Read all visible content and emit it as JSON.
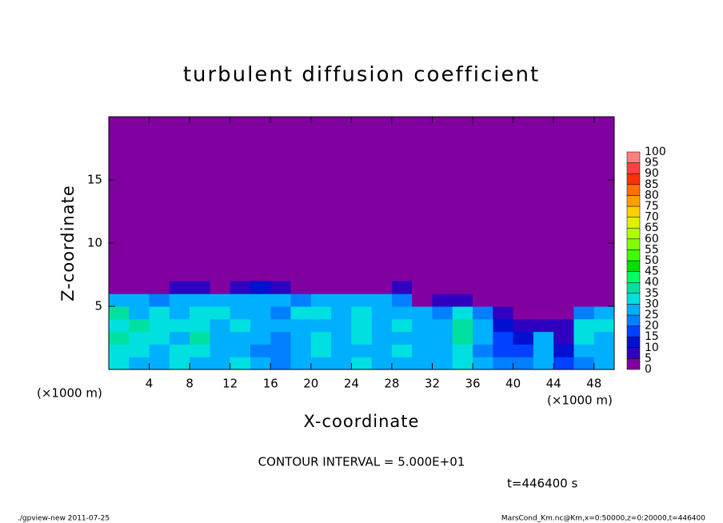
{
  "chart_data": {
    "type": "heatmap",
    "title": "turbulent diffusion coefficient",
    "xlabel": "X-coordinate",
    "ylabel": "Z-coordinate",
    "x_unit": "(×1000 m)",
    "xlim": [
      0,
      50
    ],
    "ylim": [
      0,
      20
    ],
    "xticks": [
      4,
      8,
      12,
      16,
      20,
      24,
      28,
      32,
      36,
      40,
      44,
      48
    ],
    "yticks": [
      5,
      10,
      15
    ],
    "x": [
      1,
      3,
      5,
      7,
      9,
      11,
      13,
      15,
      17,
      19,
      21,
      23,
      25,
      27,
      29,
      31,
      33,
      35,
      37,
      39,
      41,
      43,
      45,
      47,
      49
    ],
    "y": [
      0.5,
      1.5,
      2.5,
      3.5,
      4.5,
      5.5,
      6.5
    ],
    "z": [
      [
        30,
        28,
        25,
        30,
        28,
        25,
        30,
        25,
        22,
        25,
        28,
        25,
        30,
        25,
        28,
        25,
        25,
        30,
        25,
        20,
        22,
        28,
        15,
        22,
        25
      ],
      [
        30,
        32,
        28,
        30,
        30,
        25,
        25,
        22,
        20,
        25,
        30,
        25,
        28,
        25,
        30,
        25,
        25,
        30,
        20,
        18,
        15,
        25,
        12,
        25,
        28
      ],
      [
        35,
        30,
        30,
        28,
        35,
        28,
        25,
        25,
        22,
        28,
        30,
        25,
        30,
        28,
        25,
        28,
        25,
        35,
        25,
        15,
        10,
        28,
        8,
        30,
        25
      ],
      [
        30,
        35,
        30,
        30,
        30,
        28,
        30,
        25,
        25,
        25,
        28,
        28,
        30,
        25,
        30,
        25,
        28,
        35,
        28,
        10,
        5,
        5,
        5,
        30,
        30
      ],
      [
        35,
        25,
        30,
        28,
        30,
        30,
        25,
        28,
        22,
        30,
        30,
        28,
        30,
        28,
        28,
        28,
        20,
        30,
        20,
        5,
        0,
        0,
        0,
        20,
        25
      ],
      [
        25,
        28,
        22,
        25,
        25,
        28,
        25,
        25,
        25,
        22,
        28,
        25,
        25,
        28,
        22,
        0,
        5,
        5,
        0,
        0,
        0,
        0,
        0,
        0,
        0
      ],
      [
        0,
        0,
        0,
        5,
        5,
        0,
        5,
        10,
        5,
        0,
        0,
        0,
        0,
        0,
        5,
        0,
        0,
        0,
        0,
        0,
        0,
        0,
        0,
        0,
        0
      ]
    ],
    "levels": [
      0,
      5,
      10,
      15,
      20,
      25,
      30,
      35,
      40,
      45,
      50,
      55,
      60,
      65,
      70,
      75,
      80,
      85,
      90,
      95,
      100
    ],
    "colors": [
      "#8000a0",
      "#3000c0",
      "#0010d0",
      "#0040ff",
      "#0080ff",
      "#00b0ff",
      "#00e0e0",
      "#00e0a0",
      "#00ff60",
      "#00e000",
      "#40ff00",
      "#80ff00",
      "#b0ff00",
      "#e0f000",
      "#ffd000",
      "#ffa000",
      "#ff7000",
      "#ff3000",
      "#ff4040",
      "#ff8080"
    ],
    "contour_note": "CONTOUR INTERVAL = 5.000E+01",
    "time_note": "t=446400 s",
    "footer_left": "./gpview-new  2011-07-25",
    "footer_right": "MarsCond_Km.nc@Km,x=0:50000,z=0:20000,t=446400"
  }
}
